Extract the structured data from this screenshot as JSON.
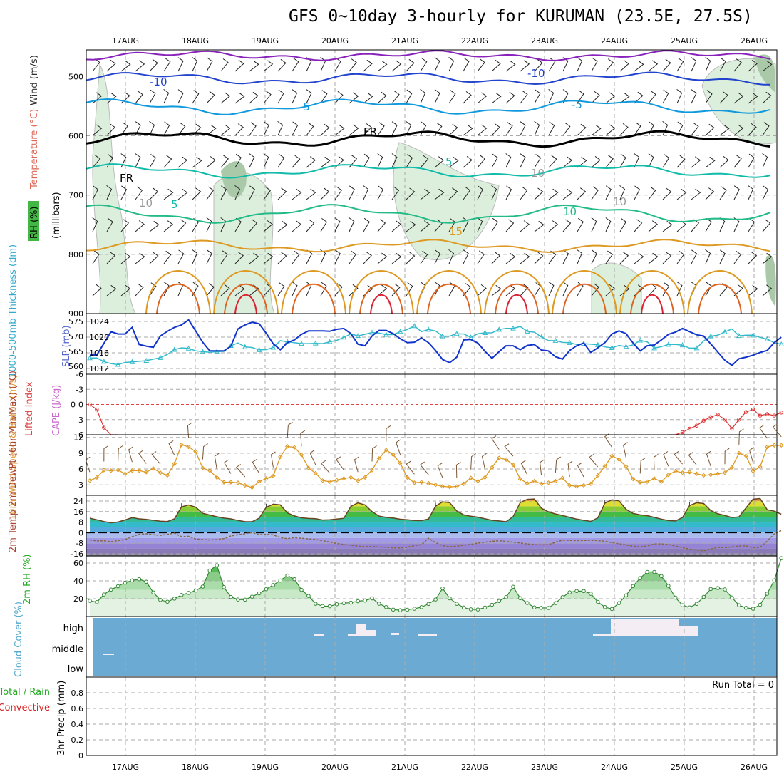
{
  "page": {
    "title": "GFS 0~10day 3-hourly for KURUMAN (23.5E, 27.5S)",
    "dates": [
      "17AUG",
      "18AUG",
      "19AUG",
      "20AUG",
      "21AUG",
      "22AUG",
      "23AUG",
      "24AUG",
      "25AUG",
      "26AUG"
    ]
  },
  "chart_data": [
    {
      "type": "line",
      "panel": "upper-air",
      "ylabel_parts": [
        "RH (%)",
        "Temperature (°C)",
        "Wind (m/s)"
      ],
      "yunit": "(millibars)",
      "y_ticks": [
        500,
        600,
        700,
        800,
        900
      ],
      "contour_labels": [
        "-10",
        "-10",
        "-5",
        "-5",
        "FR",
        "FR",
        "5",
        "5",
        "10",
        "15",
        "10",
        "10",
        "10"
      ],
      "colors": {
        "t_minus10": "#2244cc",
        "t_minus5": "#1199dd",
        "t_freeze": "#000000",
        "t_5": "#11bbaa",
        "t_10": "#22bb88",
        "t_15": "#dd9922",
        "t_20": "#dd6622",
        "t_25": "#dd2233",
        "rh_fill": "#dcefdc"
      }
    },
    {
      "type": "line",
      "panel": "thickness-slp",
      "ylabel_left": "1000-500mb Thickness (dm)",
      "ylabel_right": "SLP (mb)",
      "y_ticks_left": [
        560,
        565,
        570,
        575
      ],
      "y_ticks_right": [
        1012,
        1016,
        1020,
        1024
      ],
      "series": [
        {
          "name": "SLP (mb)",
          "color": "#1133cc",
          "values": [
            1015.4,
            1015.5,
            1018.4,
            1021.4,
            1020.8,
            1020.8,
            1022.5,
            1018.1,
            1017.7,
            1017.4,
            1020.3,
            1021.5,
            1022.5,
            1023.1,
            1024.4,
            1021.6,
            1018.7,
            1016.5,
            1016.5,
            1016.5,
            1017.7,
            1022.1,
            1023.1,
            1023.8,
            1023.4,
            1021.0,
            1018.3,
            1016.8,
            1018.6,
            1019.3,
            1020.7,
            1021.6,
            1021.6,
            1021.6,
            1021.5,
            1022.0,
            1022.2,
            1020.9,
            1018.2,
            1017.8,
            1020.3,
            1021.7,
            1021.7,
            1020.9,
            1019.6,
            1018.6,
            1018.7,
            1019.8,
            1018.6,
            1016.6,
            1014.3,
            1013.5,
            1014.9,
            1019.3,
            1019.4,
            1018.5,
            1016.4,
            1014.6,
            1016.3,
            1017.8,
            1017.8,
            1016.8,
            1017.9,
            1018.1,
            1016.7,
            1016.5,
            1015.0,
            1014.4,
            1016.6,
            1017.8,
            1018.5,
            1016.1,
            1017.3,
            1018.6,
            1020.8,
            1021.6,
            1020.9,
            1018.5,
            1016.5,
            1017.8,
            1018.0,
            1019.3,
            1020.7,
            1021.3,
            1022.2,
            1021.4,
            1020.6,
            1020.3,
            1018.3,
            1016.2,
            1014.1,
            1012.8,
            1014.5,
            1014.9,
            1015.4,
            1016.1,
            1016.6,
            1018.6,
            1020.0
          ]
        },
        {
          "name": "1000-500mb Thickness (dm)",
          "color": "#33bbcc",
          "values": [
            562.8,
            562.8,
            561.6,
            560.9,
            560.6,
            561.3,
            561.5,
            561.7,
            561.9,
            562.4,
            562.9,
            564.0,
            565.6,
            566.2,
            566.0,
            565.2,
            564.9,
            564.7,
            564.9,
            565.0,
            566.9,
            567.8,
            566.5,
            566.3,
            565.5,
            565.6,
            566.3,
            568.6,
            568.2,
            567.9,
            567.6,
            567.6,
            567.7,
            567.6,
            568.2,
            568.7,
            569.7,
            570.8,
            570.2,
            570.7,
            571.3,
            571.1,
            570.6,
            570.6,
            571.6,
            572.3,
            573.5,
            571.6,
            572.3,
            571.8,
            570.1,
            570.1,
            570.9,
            570.8,
            569.7,
            570.9,
            571.2,
            571.2,
            572.3,
            572.7,
            572.7,
            573.3,
            571.7,
            571.4,
            569.8,
            568.6,
            568.6,
            568.0,
            567.9,
            567.3,
            567.6,
            567.4,
            567.2,
            566.5,
            566.2,
            567.0,
            566.6,
            567.2,
            568.7,
            568.2,
            566.1,
            566.6,
            567.3,
            567.3,
            567.1,
            566.1,
            566.1,
            568.5,
            570.1,
            570.4,
            571.5,
            572.5,
            570.2,
            570.4,
            570.4,
            569.7,
            569.1,
            567.9,
            567.4
          ]
        }
      ]
    },
    {
      "type": "line",
      "panel": "cape-li",
      "ylabel_left": "Lifted Index",
      "ylabel_right": "CAPE (J/kg)",
      "y_ticks_left": [
        -6,
        -3,
        0,
        3,
        6
      ],
      "y_ticks_right": [
        0
      ],
      "series": [
        {
          "name": "Lifted Index",
          "color": "#dd3333",
          "lines": [
            {
              "x": [
                0,
                1,
                2,
                3,
                4
              ],
              "values": [
                0.0,
                1.0,
                4.6,
                7.2,
                9.0
              ]
            },
            {
              "x": [
                82,
                83,
                84,
                85,
                86,
                87,
                88,
                89,
                90,
                91,
                92,
                93,
                94,
                95,
                96,
                97,
                98
              ],
              "values": [
                9.0,
                7.0,
                5.5,
                4.8,
                4.2,
                3.2,
                2.5,
                2.0,
                3.0,
                4.8,
                3.0,
                1.5,
                1.0,
                2.2,
                1.9,
                2.2,
                1.6
              ]
            }
          ]
        }
      ]
    },
    {
      "type": "line",
      "panel": "wind10m",
      "ylabel": "10m Wind Speed & Barbs (m/s)",
      "ylim": [
        1,
        12.5
      ],
      "y_ticks": [
        3,
        6,
        9,
        12
      ],
      "series": [
        {
          "name": "10m Wind Speed",
          "color": "#dd9922",
          "values": [
            3.8,
            4.4,
            5.8,
            5.7,
            5.8,
            5.1,
            5.7,
            5.7,
            5.4,
            6.1,
            5.3,
            4.8,
            7.0,
            10.6,
            10.2,
            9.3,
            6.2,
            5.7,
            4.4,
            3.5,
            3.5,
            3.4,
            2.9,
            2.5,
            3.6,
            4.2,
            4.7,
            8.3,
            10.3,
            10.1,
            8.7,
            6.2,
            5.2,
            3.8,
            3.6,
            3.9,
            4.2,
            4.4,
            3.8,
            4.4,
            5.8,
            8.0,
            9.6,
            8.7,
            7.1,
            4.4,
            3.4,
            3.5,
            3.3,
            3.0,
            2.7,
            2.6,
            2.7,
            3.2,
            4.3,
            3.7,
            4.4,
            6.3,
            8.1,
            7.8,
            6.8,
            4.1,
            3.3,
            3.7,
            3.2,
            3.4,
            3.7,
            4.3,
            2.9,
            2.7,
            2.9,
            3.2,
            4.8,
            6.5,
            8.5,
            7.8,
            6.5,
            4.1,
            3.5,
            3.6,
            4.2,
            3.6,
            4.9,
            5.6,
            5.3,
            5.4,
            5.1,
            4.8,
            4.9,
            5.1,
            5.3,
            6.3,
            9.0,
            8.5,
            5.6,
            6.4,
            10.2,
            10.5,
            10.5
          ]
        }
      ]
    },
    {
      "type": "area",
      "panel": "temp2m",
      "ylabel": "2m Temp 2m DewPt (6hr Min/Max) (°C)",
      "ylim": [
        -18,
        28
      ],
      "y_ticks": [
        -16,
        -8,
        0,
        8,
        16,
        24
      ],
      "series": [
        {
          "name": "2m Temp",
          "color": "#664422",
          "values": [
            11.0,
            9.8,
            8.5,
            7.5,
            8.1,
            9.7,
            11.4,
            10.5,
            10.1,
            9.4,
            8.7,
            8.5,
            10.5,
            19.6,
            21.0,
            19.4,
            14.7,
            13.4,
            12.1,
            11.1,
            10.5,
            9.3,
            8.4,
            8.3,
            11.0,
            19.3,
            21.6,
            21.1,
            15.0,
            12.7,
            11.3,
            10.8,
            10.6,
            9.6,
            9.8,
            10.4,
            10.9,
            20.0,
            22.6,
            21.1,
            16.0,
            12.6,
            11.6,
            11.2,
            10.2,
            9.8,
            9.3,
            9.2,
            10.4,
            20.1,
            23.4,
            22.8,
            16.5,
            13.5,
            12.5,
            11.8,
            10.6,
            9.4,
            8.9,
            8.3,
            12.2,
            22.8,
            25.3,
            25.5,
            18.6,
            15.8,
            14.2,
            13.1,
            11.6,
            10.3,
            9.4,
            8.6,
            11.3,
            22.4,
            24.9,
            24.1,
            17.8,
            14.6,
            13.5,
            12.9,
            11.6,
            10.3,
            9.2,
            8.9,
            11.5,
            20.6,
            22.7,
            22.1,
            16.8,
            14.3,
            13.1,
            11.5,
            12.0,
            18.8,
            25.4,
            25.9,
            17.4,
            16.3,
            14.0
          ]
        },
        {
          "name": "2m DewPt",
          "color": "#886644",
          "values": [
            -5.5,
            -6.2,
            -6.1,
            -6.8,
            -6.0,
            -5.2,
            -3.0,
            -1.2,
            -0.8,
            -1.5,
            -2.0,
            -1.2,
            -0.3,
            -3.0,
            -2.7,
            -4.8,
            -5.2,
            -5.5,
            -5.2,
            -4.5,
            -2.5,
            -1.5,
            -0.8,
            0.2,
            -1.5,
            -1.2,
            -1.6,
            -3.8,
            -4.5,
            -3.8,
            -4.2,
            -4.7,
            -5.2,
            -6.0,
            -7.0,
            -8.2,
            -8.9,
            -9.5,
            -10.2,
            -10.6,
            -10.3,
            -10.8,
            -11.0,
            -11.5,
            -11.5,
            -11.0,
            -9.8,
            -9.1,
            -4.2,
            -7.5,
            -9.8,
            -10.6,
            -10.2,
            -9.5,
            -8.8,
            -7.9,
            -7.2,
            -6.5,
            -6.1,
            -6.6,
            -7.2,
            -7.8,
            -8.5,
            -9.0,
            -9.3,
            -9.1,
            -7.2,
            -5.7,
            -5.9,
            -6.0,
            -5.9,
            -5.8,
            -6.0,
            -6.5,
            -7.5,
            -8.4,
            -9.3,
            -10.2,
            -10.7,
            -10.0,
            -8.5,
            -8.5,
            -9.0,
            -10.1,
            -11.3,
            -12.5,
            -13.2,
            -13.8,
            -12.3,
            -11.2,
            -11.4,
            -10.7,
            -10.1,
            -10.0,
            -11.5,
            -11.0,
            -6.4,
            -0.9,
            1.7
          ]
        }
      ]
    },
    {
      "type": "area",
      "panel": "rh2m",
      "ylabel": "2m RH (%)",
      "ylim": [
        0,
        68
      ],
      "y_ticks": [
        20,
        40,
        60
      ],
      "series": [
        {
          "name": "2m RH",
          "color": "#33aa33",
          "values": [
            17.6,
            16.2,
            24.7,
            30.2,
            34.0,
            38.0,
            40.5,
            41.9,
            39.0,
            27.0,
            18.6,
            16.6,
            20.1,
            24.2,
            26.5,
            29.1,
            33.6,
            51.7,
            57.4,
            33.0,
            21.9,
            19.1,
            18.9,
            22.3,
            26.0,
            30.7,
            35.3,
            40.4,
            46.0,
            41.9,
            29.9,
            23.1,
            14.3,
            11.7,
            11.5,
            13.8,
            15.0,
            15.6,
            17.2,
            17.9,
            20.4,
            14.4,
            10.6,
            7.8,
            7.1,
            7.6,
            8.8,
            10.5,
            14.1,
            19.1,
            31.5,
            20.4,
            14.3,
            10.1,
            8.1,
            7.9,
            10.1,
            13.2,
            17.4,
            21.8,
            33.4,
            20.6,
            15.2,
            10.2,
            9.7,
            9.6,
            15.1,
            21.7,
            27.1,
            28.6,
            28.5,
            25.6,
            16.4,
            10.6,
            8.5,
            15.1,
            23.8,
            34.2,
            43.1,
            50.0,
            50.0,
            45.4,
            34.4,
            21.2,
            12.7,
            10.2,
            14.2,
            22.0,
            30.9,
            32.0,
            30.4,
            21.3,
            12.7,
            9.8,
            8.8,
            13.2,
            25.6,
            40.5,
            65.5
          ]
        }
      ]
    },
    {
      "type": "area",
      "panel": "cloud",
      "ylabel": "Cloud Cover (%)",
      "y_labels": [
        "high",
        "middle",
        "low"
      ]
    },
    {
      "type": "bar",
      "panel": "precip",
      "ylabel_parts": [
        "Total / Rain",
        "Convective",
        "3hr Precip (mm)"
      ],
      "ylim": [
        0,
        1
      ],
      "y_ticks": [
        0,
        0.2,
        0.4,
        0.6,
        0.8
      ],
      "run_total": "Run Total = 0",
      "values": []
    }
  ]
}
